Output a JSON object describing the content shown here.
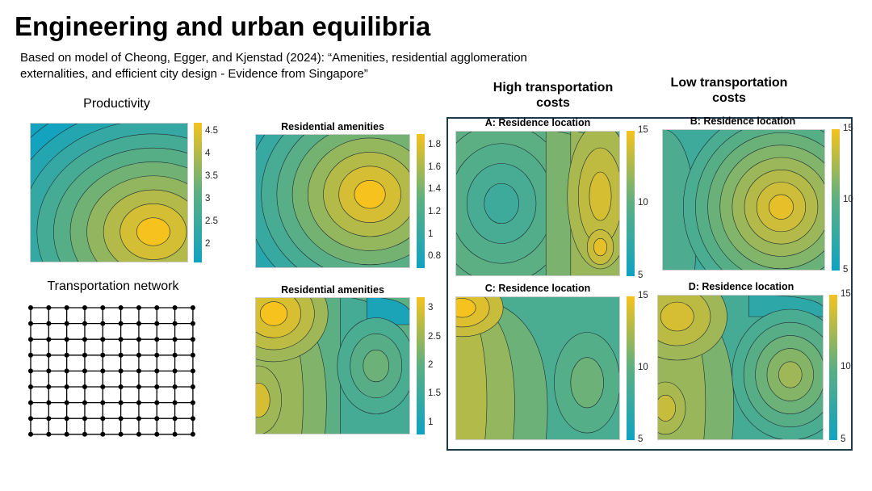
{
  "slide": {
    "title": "Engineering and urban equilibria",
    "subtitle": "Based on model of  Cheong, Egger, and Kjenstad (2024): “Amenities, residential agglomeration externalities, and efficient city design - Evidence from Singapore”",
    "productivity_label": "Productivity",
    "transport_label": "Transportation network",
    "high_cost_label": "High transportation costs",
    "low_cost_label": "Low transportation costs"
  },
  "colors": {
    "low": "#0fa2c2",
    "mid": "#5caf82",
    "high": "#f5c21e",
    "box_border": "#1e3a4a"
  },
  "network": {
    "columns": 10,
    "rows": 9
  },
  "chart_data": [
    {
      "id": "productivity",
      "type": "heatmap",
      "title": "",
      "colorbar_ticks": [
        "4.5",
        "4",
        "3.5",
        "3",
        "2.5",
        "2"
      ],
      "range": [
        1.6,
        4.7
      ],
      "peak": "lower-right"
    },
    {
      "id": "amenities1",
      "type": "heatmap",
      "title": "Residential amenities",
      "colorbar_ticks": [
        "1.8",
        "1.6",
        "1.4",
        "1.2",
        "1",
        "0.8"
      ],
      "range": [
        0.7,
        1.9
      ],
      "peak": "right-center"
    },
    {
      "id": "amenities2",
      "type": "heatmap",
      "title": "Residential amenities",
      "colorbar_ticks": [
        "3",
        "2.5",
        "2",
        "1.5",
        "1"
      ],
      "range": [
        0.8,
        3.2
      ],
      "peak": "top-left"
    },
    {
      "id": "A",
      "type": "heatmap",
      "title": "A: Residence location",
      "colorbar_ticks": [
        "15",
        "10",
        "5"
      ],
      "range": [
        5,
        15
      ]
    },
    {
      "id": "B",
      "type": "heatmap",
      "title": "B: Residence location",
      "colorbar_ticks": [
        "15",
        "10",
        "5"
      ],
      "range": [
        5,
        15
      ]
    },
    {
      "id": "C",
      "type": "heatmap",
      "title": "C: Residence location",
      "colorbar_ticks": [
        "15",
        "10",
        "5"
      ],
      "range": [
        5,
        15
      ]
    },
    {
      "id": "D",
      "type": "heatmap",
      "title": "D: Residence location",
      "colorbar_ticks": [
        "15",
        "10",
        "5"
      ],
      "range": [
        5,
        15
      ]
    }
  ]
}
